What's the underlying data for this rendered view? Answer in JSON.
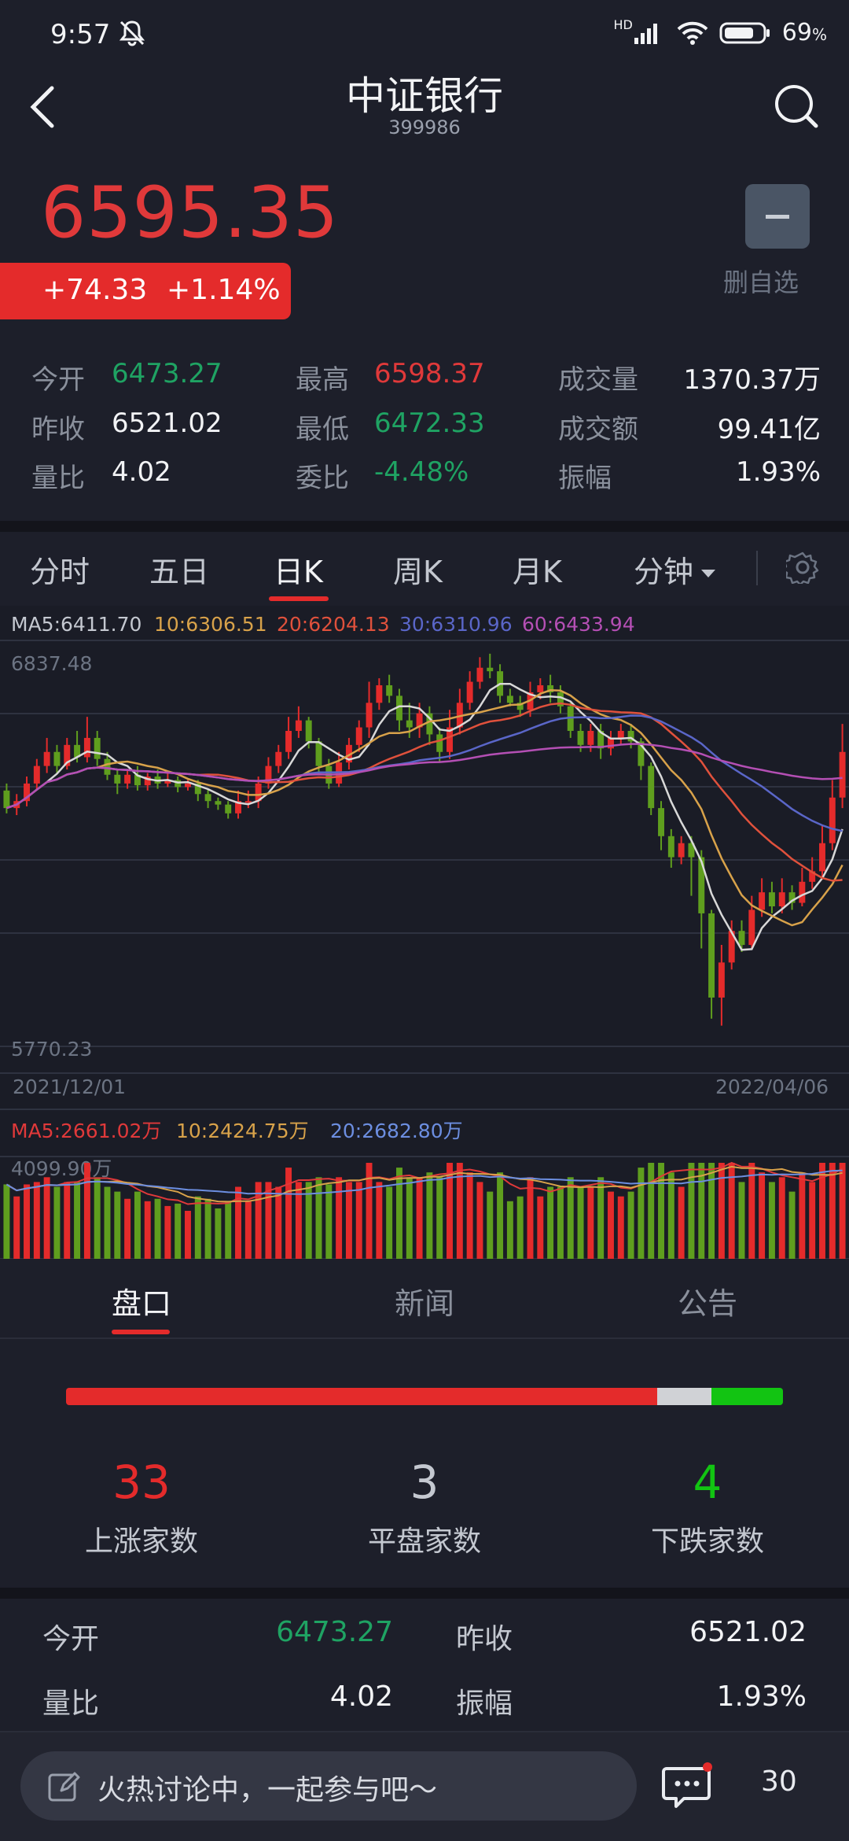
{
  "status_bar": {
    "time": "9:57",
    "net": "HD",
    "battery": "69",
    "battery_unit": "%"
  },
  "header": {
    "title": "中证银行",
    "code": "399986"
  },
  "quote": {
    "price": "6595.35",
    "change": "+74.33",
    "change_pct": "+1.14%",
    "remove_label": "删自选"
  },
  "stats": {
    "open_label": "今开",
    "open": "6473.27",
    "high_label": "最高",
    "high": "6598.37",
    "volume_label": "成交量",
    "volume": "1370.37万",
    "prev_label": "昨收",
    "prev": "6521.02",
    "low_label": "最低",
    "low": "6472.33",
    "amount_label": "成交额",
    "amount": "99.41亿",
    "ratio_label": "量比",
    "ratio": "4.02",
    "bid_label": "委比",
    "bid": "-4.48%",
    "amp_label": "振幅",
    "amp": "1.93%"
  },
  "tabs": [
    "分时",
    "五日",
    "日K",
    "周K",
    "月K",
    "分钟"
  ],
  "active_tab": "日K",
  "chart_labels": {
    "ma5": "MA5:6411.70",
    "ma10": "10:6306.51",
    "ma20": "20:6204.13",
    "ma30": "30:6310.96",
    "ma60": "60:6433.94",
    "y_high": "6837.48",
    "y_low": "5770.23",
    "date_start": "2021/12/01",
    "date_end": "2022/04/06",
    "vol_ma5": "MA5:2661.02万",
    "vol_ma10": "10:2424.75万",
    "vol_ma20": "20:2682.80万",
    "vol_max": "4099.90万"
  },
  "colors": {
    "up": "#e42b2b",
    "down": "#5f9e1e",
    "ma5": "#d8d8d8",
    "ma10": "#d8a24a",
    "ma20": "#e0513c",
    "ma30": "#5a66c8",
    "ma60": "#b44fb4"
  },
  "chart_data": {
    "type": "candlestick",
    "x_range": [
      "2021/12/01",
      "2022/04/06"
    ],
    "ylim": [
      5770.23,
      6837.48
    ],
    "volume_max": "4099.90万",
    "candles": [
      [
        6450,
        6400,
        6470,
        6385
      ],
      [
        6400,
        6420,
        6440,
        6380
      ],
      [
        6420,
        6470,
        6490,
        6405
      ],
      [
        6470,
        6520,
        6540,
        6450
      ],
      [
        6520,
        6560,
        6600,
        6500
      ],
      [
        6560,
        6520,
        6580,
        6500
      ],
      [
        6520,
        6580,
        6600,
        6510
      ],
      [
        6580,
        6545,
        6620,
        6530
      ],
      [
        6545,
        6600,
        6660,
        6530
      ],
      [
        6600,
        6540,
        6620,
        6520
      ],
      [
        6540,
        6495,
        6560,
        6480
      ],
      [
        6495,
        6470,
        6510,
        6440
      ],
      [
        6470,
        6495,
        6510,
        6455
      ],
      [
        6495,
        6465,
        6520,
        6450
      ],
      [
        6465,
        6490,
        6500,
        6450
      ],
      [
        6490,
        6470,
        6510,
        6455
      ],
      [
        6470,
        6480,
        6500,
        6460
      ],
      [
        6480,
        6460,
        6490,
        6445
      ],
      [
        6460,
        6470,
        6480,
        6450
      ],
      [
        6470,
        6440,
        6480,
        6420
      ],
      [
        6440,
        6420,
        6455,
        6400
      ],
      [
        6420,
        6410,
        6430,
        6395
      ],
      [
        6410,
        6385,
        6420,
        6370
      ],
      [
        6385,
        6420,
        6450,
        6370
      ],
      [
        6420,
        6420,
        6450,
        6400
      ],
      [
        6420,
        6470,
        6490,
        6400
      ],
      [
        6470,
        6520,
        6545,
        6455
      ],
      [
        6520,
        6560,
        6580,
        6500
      ],
      [
        6560,
        6620,
        6660,
        6540
      ],
      [
        6620,
        6650,
        6690,
        6600
      ],
      [
        6650,
        6590,
        6660,
        6570
      ],
      [
        6590,
        6520,
        6600,
        6500
      ],
      [
        6520,
        6470,
        6540,
        6455
      ],
      [
        6470,
        6530,
        6560,
        6460
      ],
      [
        6530,
        6580,
        6600,
        6510
      ],
      [
        6580,
        6630,
        6650,
        6560
      ],
      [
        6630,
        6700,
        6760,
        6600
      ],
      [
        6700,
        6750,
        6770,
        6680
      ],
      [
        6750,
        6720,
        6780,
        6700
      ],
      [
        6720,
        6650,
        6740,
        6620
      ],
      [
        6650,
        6630,
        6700,
        6600
      ],
      [
        6630,
        6670,
        6700,
        6600
      ],
      [
        6670,
        6610,
        6690,
        6580
      ],
      [
        6610,
        6560,
        6630,
        6530
      ],
      [
        6560,
        6630,
        6680,
        6540
      ],
      [
        6630,
        6700,
        6740,
        6610
      ],
      [
        6700,
        6760,
        6790,
        6680
      ],
      [
        6760,
        6800,
        6830,
        6740
      ],
      [
        6800,
        6790,
        6840,
        6770
      ],
      [
        6790,
        6720,
        6810,
        6700
      ],
      [
        6720,
        6700,
        6740,
        6690
      ],
      [
        6700,
        6680,
        6720,
        6660
      ],
      [
        6680,
        6730,
        6760,
        6660
      ],
      [
        6730,
        6750,
        6770,
        6710
      ],
      [
        6750,
        6730,
        6780,
        6700
      ],
      [
        6730,
        6690,
        6750,
        6670
      ],
      [
        6690,
        6620,
        6700,
        6600
      ],
      [
        6620,
        6580,
        6640,
        6560
      ],
      [
        6580,
        6620,
        6640,
        6560
      ],
      [
        6620,
        6570,
        6640,
        6540
      ],
      [
        6570,
        6600,
        6620,
        6550
      ],
      [
        6600,
        6620,
        6640,
        6580
      ],
      [
        6620,
        6590,
        6640,
        6570
      ],
      [
        6590,
        6520,
        6600,
        6480
      ],
      [
        6520,
        6400,
        6530,
        6380
      ],
      [
        6400,
        6320,
        6420,
        6280
      ],
      [
        6320,
        6260,
        6340,
        6230
      ],
      [
        6260,
        6300,
        6320,
        6240
      ],
      [
        6300,
        6260,
        6320,
        6150
      ],
      [
        6260,
        6100,
        6280,
        6000
      ],
      [
        6100,
        5860,
        6110,
        5800
      ],
      [
        5860,
        5960,
        6010,
        5780
      ],
      [
        5960,
        6050,
        6080,
        5940
      ],
      [
        6050,
        6010,
        6080,
        5990
      ],
      [
        6010,
        6110,
        6150,
        6000
      ],
      [
        6110,
        6160,
        6200,
        6090
      ],
      [
        6160,
        6120,
        6190,
        6100
      ],
      [
        6120,
        6160,
        6200,
        6100
      ],
      [
        6160,
        6130,
        6180,
        6110
      ],
      [
        6130,
        6190,
        6230,
        6120
      ],
      [
        6190,
        6220,
        6260,
        6170
      ],
      [
        6220,
        6300,
        6350,
        6200
      ],
      [
        6300,
        6430,
        6480,
        6280
      ],
      [
        6430,
        6560,
        6640,
        6400
      ]
    ]
  },
  "subtabs": [
    "盘口",
    "新闻",
    "公告"
  ],
  "breadth": {
    "up": "33",
    "up_label": "上涨家数",
    "flat": "3",
    "flat_label": "平盘家数",
    "down": "4",
    "down_label": "下跌家数"
  },
  "summary": {
    "open_label": "今开",
    "open": "6473.27",
    "prev_label": "昨收",
    "prev": "6521.02",
    "ratio_label": "量比",
    "ratio": "4.02",
    "amp_label": "振幅",
    "amp": "1.93%"
  },
  "footer": {
    "comment_placeholder": "火热讨论中，一起参与吧～",
    "comment_count": "30"
  }
}
